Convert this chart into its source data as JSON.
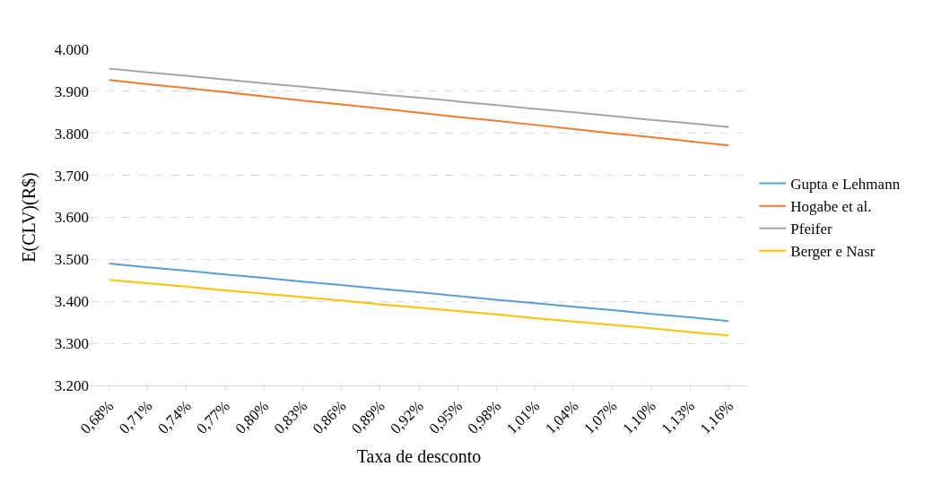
{
  "chart_data": {
    "type": "line",
    "xlabel": "Taxa de desconto",
    "ylabel": "E(CLV)(R$)",
    "categories": [
      "0,68%",
      "0,71%",
      "0,74%",
      "0,77%",
      "0,80%",
      "0,83%",
      "0,86%",
      "0,89%",
      "0,92%",
      "0,95%",
      "0,98%",
      "1,01%",
      "1,04%",
      "1,07%",
      "1,10%",
      "1,13%",
      "1,16%"
    ],
    "series": [
      {
        "name": "Gupta e Lehmann",
        "color": "#5b9bd5",
        "values": [
          3490,
          3481,
          3473,
          3464,
          3456,
          3447,
          3439,
          3430,
          3422,
          3413,
          3404,
          3396,
          3387,
          3379,
          3370,
          3362,
          3353
        ]
      },
      {
        "name": "Hogabe et al.",
        "color": "#ed7d31",
        "values": [
          3927,
          3917,
          3908,
          3898,
          3888,
          3878,
          3869,
          3859,
          3849,
          3839,
          3830,
          3820,
          3810,
          3800,
          3791,
          3781,
          3771
        ]
      },
      {
        "name": "Pfeifer",
        "color": "#a5a5a5",
        "values": [
          3954,
          3945,
          3937,
          3928,
          3919,
          3911,
          3902,
          3893,
          3885,
          3876,
          3867,
          3858,
          3850,
          3841,
          3832,
          3824,
          3815
        ]
      },
      {
        "name": "Berger e Nasr",
        "color": "#ffc000",
        "values": [
          3451,
          3443,
          3435,
          3426,
          3418,
          3410,
          3402,
          3393,
          3385,
          3377,
          3369,
          3360,
          3352,
          3344,
          3336,
          3327,
          3319
        ]
      }
    ],
    "ylim": [
      3200,
      4000
    ],
    "yticks": [
      {
        "value": 3200,
        "label": "3.200"
      },
      {
        "value": 3300,
        "label": "3.300"
      },
      {
        "value": 3400,
        "label": "3.400"
      },
      {
        "value": 3500,
        "label": "3.500"
      },
      {
        "value": 3600,
        "label": "3.600"
      },
      {
        "value": 3700,
        "label": "3.700"
      },
      {
        "value": 3800,
        "label": "3.800"
      },
      {
        "value": 3900,
        "label": "3.900"
      },
      {
        "value": 4000,
        "label": "4.000"
      }
    ],
    "grid": "y",
    "legend": "right",
    "marker": "none",
    "line_style": "solid"
  }
}
